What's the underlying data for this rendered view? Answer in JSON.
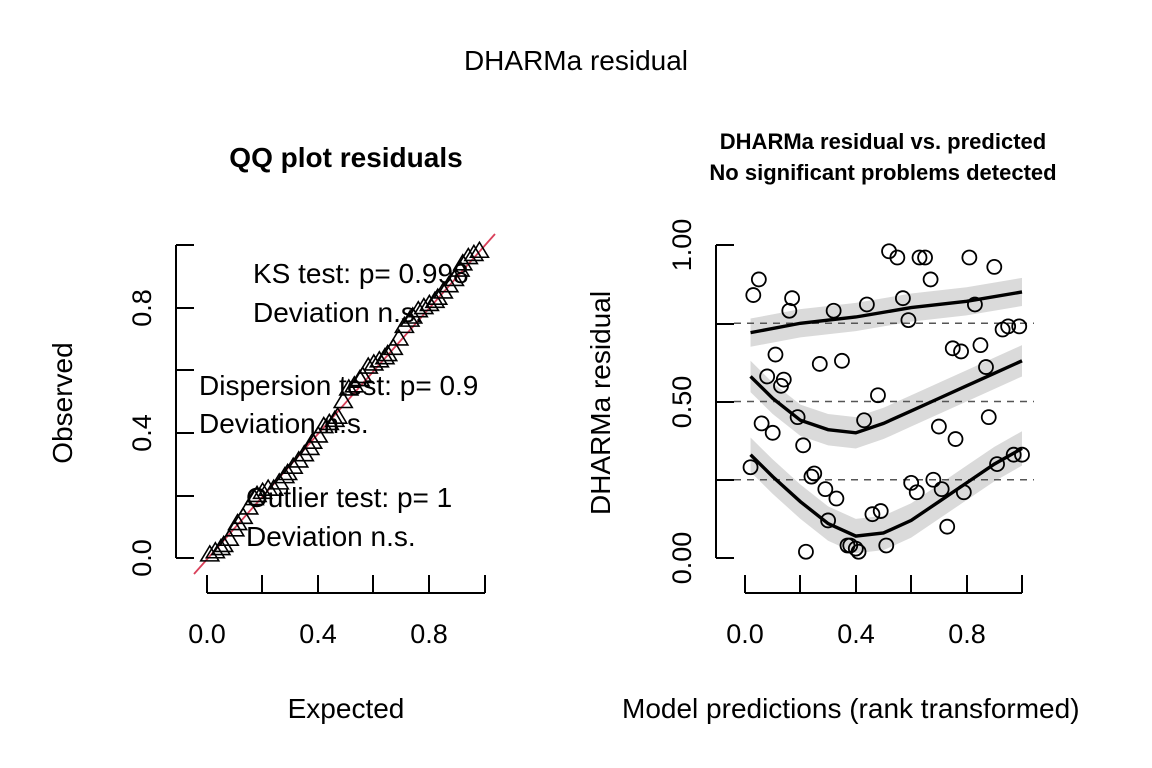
{
  "title": "DHARMa residual",
  "chart_data": [
    {
      "type": "scatter",
      "title": "QQ plot residuals",
      "xlabel": "Expected",
      "ylabel": "Observed",
      "xlim": [
        0,
        1
      ],
      "ylim": [
        0,
        1
      ],
      "xticks": [
        "0.0",
        "0.4",
        "0.8"
      ],
      "yticks": [
        "0.0",
        "0.4",
        "0.8"
      ],
      "marker": "triangle",
      "reference_line": {
        "slope": 1,
        "intercept": 0,
        "color": "#d9405a"
      },
      "x": [
        0.01,
        0.03,
        0.05,
        0.06,
        0.08,
        0.1,
        0.11,
        0.13,
        0.15,
        0.17,
        0.18,
        0.2,
        0.22,
        0.24,
        0.26,
        0.28,
        0.29,
        0.31,
        0.33,
        0.35,
        0.37,
        0.38,
        0.4,
        0.42,
        0.44,
        0.46,
        0.47,
        0.49,
        0.51,
        0.53,
        0.55,
        0.56,
        0.58,
        0.6,
        0.62,
        0.64,
        0.65,
        0.67,
        0.69,
        0.71,
        0.73,
        0.74,
        0.76,
        0.78,
        0.8,
        0.82,
        0.83,
        0.85,
        0.87,
        0.89,
        0.91,
        0.92,
        0.94,
        0.96,
        0.98
      ],
      "y": [
        0.01,
        0.02,
        0.03,
        0.04,
        0.06,
        0.09,
        0.11,
        0.13,
        0.16,
        0.19,
        0.2,
        0.21,
        0.22,
        0.22,
        0.24,
        0.26,
        0.27,
        0.29,
        0.31,
        0.33,
        0.35,
        0.37,
        0.39,
        0.42,
        0.43,
        0.44,
        0.45,
        0.5,
        0.54,
        0.55,
        0.57,
        0.58,
        0.61,
        0.62,
        0.63,
        0.64,
        0.65,
        0.67,
        0.7,
        0.74,
        0.76,
        0.77,
        0.79,
        0.8,
        0.81,
        0.82,
        0.83,
        0.85,
        0.87,
        0.89,
        0.92,
        0.94,
        0.96,
        0.97,
        0.98
      ],
      "annotations": [
        {
          "id": "ks1",
          "text": "KS test: p= 0.998"
        },
        {
          "id": "ks2",
          "text": "Deviation  n.s."
        },
        {
          "id": "disp1",
          "text": "Dispersion test: p= 0.9"
        },
        {
          "id": "disp2",
          "text": "Deviation  n.s."
        },
        {
          "id": "out1",
          "text": "Outlier test: p= 1"
        },
        {
          "id": "out2",
          "text": "Deviation  n.s."
        }
      ]
    },
    {
      "type": "scatter",
      "title": "DHARMa residual vs. predicted",
      "subtitle": "No significant problems detected",
      "xlabel": "Model predictions (rank transformed)",
      "ylabel": "DHARMa residual",
      "xlim": [
        0,
        1
      ],
      "ylim": [
        0,
        1
      ],
      "xticks": [
        "0.0",
        "0.4",
        "0.8"
      ],
      "yticks": [
        "0.00",
        "0.50",
        "1.00"
      ],
      "marker": "circle",
      "quantile_lines": [
        0.25,
        0.5,
        0.75
      ],
      "x": [
        0.02,
        0.03,
        0.05,
        0.06,
        0.08,
        0.1,
        0.11,
        0.13,
        0.14,
        0.16,
        0.17,
        0.19,
        0.21,
        0.22,
        0.24,
        0.25,
        0.27,
        0.29,
        0.3,
        0.32,
        0.33,
        0.35,
        0.37,
        0.38,
        0.4,
        0.41,
        0.43,
        0.44,
        0.46,
        0.48,
        0.49,
        0.51,
        0.52,
        0.55,
        0.57,
        0.59,
        0.6,
        0.62,
        0.63,
        0.65,
        0.67,
        0.68,
        0.7,
        0.71,
        0.73,
        0.75,
        0.76,
        0.78,
        0.79,
        0.81,
        0.83,
        0.85,
        0.87,
        0.88,
        0.9,
        0.91,
        0.93,
        0.95,
        0.97,
        0.99,
        1.0
      ],
      "y": [
        0.29,
        0.84,
        0.89,
        0.43,
        0.58,
        0.4,
        0.65,
        0.55,
        0.57,
        0.79,
        0.83,
        0.45,
        0.36,
        0.02,
        0.26,
        0.27,
        0.62,
        0.22,
        0.12,
        0.79,
        0.19,
        0.63,
        0.04,
        0.04,
        0.03,
        0.02,
        0.44,
        0.81,
        0.14,
        0.52,
        0.15,
        0.04,
        0.98,
        0.96,
        0.83,
        0.76,
        0.24,
        0.21,
        0.96,
        0.96,
        0.89,
        0.25,
        0.42,
        0.22,
        0.1,
        0.67,
        0.38,
        0.66,
        0.21,
        0.96,
        0.81,
        0.68,
        0.61,
        0.45,
        0.93,
        0.3,
        0.73,
        0.74,
        0.33,
        0.74,
        0.33
      ],
      "fit_lines": [
        {
          "quantile": 0.75,
          "x": [
            0.02,
            0.2,
            0.4,
            0.6,
            0.8,
            1.0
          ],
          "y": [
            0.72,
            0.75,
            0.77,
            0.8,
            0.82,
            0.85
          ]
        },
        {
          "quantile": 0.5,
          "x": [
            0.02,
            0.1,
            0.2,
            0.3,
            0.4,
            0.5,
            0.6,
            0.7,
            0.8,
            0.9,
            1.0
          ],
          "y": [
            0.58,
            0.51,
            0.44,
            0.41,
            0.4,
            0.43,
            0.47,
            0.51,
            0.55,
            0.59,
            0.63
          ]
        },
        {
          "quantile": 0.25,
          "x": [
            0.02,
            0.1,
            0.2,
            0.3,
            0.4,
            0.5,
            0.6,
            0.7,
            0.8,
            0.9,
            1.0
          ],
          "y": [
            0.33,
            0.26,
            0.18,
            0.11,
            0.07,
            0.08,
            0.12,
            0.18,
            0.24,
            0.3,
            0.35
          ]
        }
      ]
    }
  ]
}
